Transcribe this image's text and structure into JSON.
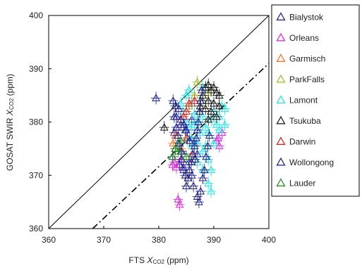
{
  "chart_data": {
    "type": "scatter",
    "title": "",
    "xlabel_prefix": "FTS ",
    "xlabel_var": "X",
    "xlabel_sub": "CO2",
    "xlabel_unit": " (ppm)",
    "ylabel_prefix": "GOSAT SWIR ",
    "ylabel_var": "X",
    "ylabel_sub": "CO2",
    "ylabel_unit": " (ppm)",
    "xlim": [
      360,
      400
    ],
    "ylim": [
      360,
      400
    ],
    "xticks": [
      360,
      370,
      380,
      390,
      400
    ],
    "yticks": [
      360,
      370,
      380,
      390,
      400
    ],
    "grid": false,
    "legend_position": "right",
    "marker": "open-triangle",
    "reference_lines": [
      {
        "style": "solid",
        "points": [
          [
            360,
            360
          ],
          [
            400,
            400
          ]
        ]
      },
      {
        "style": "dash-dot",
        "points": [
          [
            368,
            360
          ],
          [
            400,
            391
          ]
        ]
      }
    ],
    "series": [
      {
        "name": "Bialystok",
        "color": "#1a1aa0",
        "points": [
          [
            379.5,
            384.5
          ],
          [
            383.2,
            381.0
          ],
          [
            384.0,
            379.5
          ],
          [
            382.8,
            378.0
          ],
          [
            383.5,
            376.0
          ],
          [
            384.2,
            374.5
          ],
          [
            382.5,
            373.5
          ],
          [
            383.8,
            372.0
          ],
          [
            384.5,
            371.0
          ],
          [
            383.0,
            375.0
          ],
          [
            384.8,
            378.5
          ],
          [
            385.2,
            377.0
          ],
          [
            386.0,
            380.5
          ],
          [
            386.5,
            376.0
          ],
          [
            387.0,
            374.0
          ],
          [
            385.5,
            372.5
          ]
        ]
      },
      {
        "name": "Orleans",
        "color": "#e020e0",
        "points": [
          [
            382.8,
            372.5
          ],
          [
            383.5,
            365.5
          ],
          [
            383.8,
            364.5
          ],
          [
            383.2,
            371.5
          ],
          [
            384.0,
            373.0
          ],
          [
            390.8,
            377.0
          ],
          [
            391.0,
            375.5
          ],
          [
            391.5,
            378.0
          ],
          [
            390.5,
            376.5
          ],
          [
            382.5,
            372.0
          ]
        ]
      },
      {
        "name": "Garmisch",
        "color": "#ff6a1a",
        "points": [
          [
            382.6,
            376.0
          ],
          [
            383.0,
            377.5
          ],
          [
            384.0,
            375.0
          ],
          [
            385.0,
            377.0
          ],
          [
            386.0,
            374.0
          ]
        ]
      },
      {
        "name": "ParkFalls",
        "color": "#9dbb1a",
        "points": [
          [
            387.0,
            387.5
          ],
          [
            386.5,
            385.0
          ],
          [
            388.0,
            384.0
          ],
          [
            387.5,
            382.0
          ],
          [
            385.5,
            383.0
          ],
          [
            389.0,
            385.5
          ]
        ]
      },
      {
        "name": "Lamont",
        "color": "#1ae6e6",
        "points": [
          [
            385.0,
            385.0
          ],
          [
            386.0,
            383.5
          ],
          [
            386.5,
            381.5
          ],
          [
            387.0,
            380.0
          ],
          [
            388.0,
            381.0
          ],
          [
            388.5,
            379.0
          ],
          [
            389.0,
            378.0
          ],
          [
            389.5,
            380.5
          ],
          [
            390.0,
            382.0
          ],
          [
            390.5,
            379.5
          ],
          [
            391.0,
            381.0
          ],
          [
            391.5,
            383.0
          ],
          [
            392.0,
            382.5
          ],
          [
            385.5,
            379.0
          ],
          [
            386.0,
            377.0
          ],
          [
            387.0,
            376.0
          ],
          [
            388.0,
            374.5
          ],
          [
            389.0,
            373.0
          ],
          [
            389.5,
            371.0
          ],
          [
            389.0,
            368.5
          ],
          [
            389.5,
            367.0
          ],
          [
            388.5,
            375.5
          ],
          [
            387.5,
            378.0
          ],
          [
            386.5,
            379.5
          ],
          [
            384.5,
            382.0
          ],
          [
            385.0,
            380.0
          ],
          [
            386.0,
            375.5
          ],
          [
            387.0,
            372.5
          ],
          [
            388.0,
            371.0
          ],
          [
            390.0,
            376.0
          ],
          [
            391.0,
            378.5
          ],
          [
            392.0,
            379.5
          ],
          [
            384.0,
            383.5
          ],
          [
            385.5,
            386.0
          ],
          [
            388.0,
            386.5
          ]
        ]
      },
      {
        "name": "Tsukuba",
        "color": "#111111",
        "points": [
          [
            381.0,
            379.0
          ],
          [
            388.5,
            386.5
          ],
          [
            389.0,
            387.0
          ],
          [
            389.5,
            386.0
          ],
          [
            390.0,
            386.5
          ],
          [
            390.5,
            385.5
          ],
          [
            388.0,
            385.0
          ],
          [
            389.0,
            384.0
          ],
          [
            390.0,
            383.5
          ],
          [
            391.0,
            385.0
          ],
          [
            387.5,
            383.0
          ],
          [
            388.5,
            382.5
          ],
          [
            389.5,
            382.0
          ],
          [
            390.5,
            381.0
          ],
          [
            391.0,
            383.0
          ],
          [
            389.0,
            380.5
          ]
        ]
      },
      {
        "name": "Darwin",
        "color": "#e01a1a",
        "points": [
          [
            384.5,
            381.0
          ],
          [
            385.5,
            383.5
          ],
          [
            386.5,
            384.0
          ],
          [
            385.0,
            382.0
          ]
        ]
      },
      {
        "name": "Wollongong",
        "color": "#1a1a8c",
        "points": [
          [
            382.8,
            381.0
          ],
          [
            383.2,
            379.0
          ],
          [
            383.5,
            377.5
          ],
          [
            383.8,
            376.0
          ],
          [
            384.0,
            374.5
          ],
          [
            384.2,
            373.0
          ],
          [
            384.5,
            371.5
          ],
          [
            384.8,
            370.0
          ],
          [
            385.0,
            368.0
          ],
          [
            385.3,
            369.5
          ],
          [
            385.6,
            371.0
          ],
          [
            385.9,
            372.5
          ],
          [
            386.2,
            374.0
          ],
          [
            386.5,
            375.5
          ],
          [
            386.8,
            377.0
          ],
          [
            387.0,
            378.5
          ],
          [
            387.2,
            380.0
          ],
          [
            387.4,
            382.0
          ],
          [
            387.6,
            384.0
          ],
          [
            387.0,
            366.0
          ],
          [
            387.3,
            365.0
          ],
          [
            387.6,
            367.0
          ],
          [
            388.0,
            369.5
          ],
          [
            388.3,
            371.0
          ],
          [
            388.6,
            373.5
          ],
          [
            388.9,
            375.5
          ],
          [
            389.2,
            377.5
          ],
          [
            383.0,
            383.0
          ],
          [
            384.0,
            380.5
          ],
          [
            385.0,
            378.5
          ],
          [
            386.0,
            370.0
          ],
          [
            386.3,
            368.0
          ],
          [
            387.8,
            386.0
          ],
          [
            382.6,
            384.0
          ],
          [
            383.6,
            382.5
          ],
          [
            384.6,
            379.5
          ],
          [
            385.6,
            376.5
          ],
          [
            386.6,
            373.0
          ]
        ]
      },
      {
        "name": "Lauder",
        "color": "#1a8c1a",
        "points": [
          [
            383.0,
            375.0
          ],
          [
            383.5,
            374.5
          ],
          [
            384.0,
            376.5
          ],
          [
            382.5,
            373.5
          ],
          [
            385.0,
            373.5
          ]
        ]
      }
    ]
  }
}
